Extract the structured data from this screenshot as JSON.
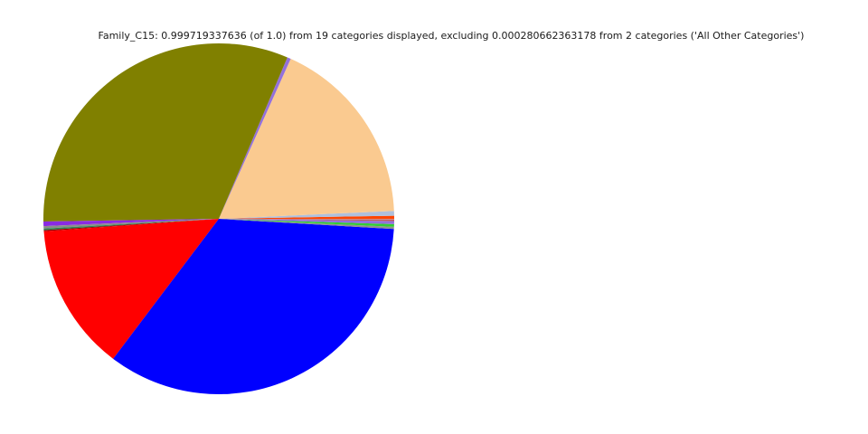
{
  "chart_data": {
    "type": "pie",
    "title": "Family_C15: 0.999719337636 (of 1.0) from 19 categories displayed, excluding 0.000280662363178 from 2 categories ('All Other Categories')",
    "displayed_fraction": 0.999719337636,
    "displayed_fraction_of": 1.0,
    "displayed_category_count": 19,
    "excluded_fraction": 0.000280662363178,
    "excluded_category_count": 2,
    "excluded_group_label": "All Other Categories",
    "start_angle_deg": 0,
    "direction": "counterclockwise",
    "labels_shown": false,
    "legend": "none",
    "background": "#ffffff",
    "slices": [
      {
        "color": "#FF4500",
        "value": 0.0028
      },
      {
        "color": "#AFC0DC",
        "value": 0.0044
      },
      {
        "color": "#FACA90",
        "value": 0.1755
      },
      {
        "color": "#9370DB",
        "value": 0.0033
      },
      {
        "color": "#808000",
        "value": 0.3163
      },
      {
        "color": "#8A2BE2",
        "value": 0.0042
      },
      {
        "color": "#8C8C8C",
        "value": 0.0022
      },
      {
        "color": "#2E8B57",
        "value": 0.0014
      },
      {
        "color": "#8B0000",
        "value": 0.0011
      },
      {
        "color": "#FF0000",
        "value": 0.1357
      },
      {
        "color": "#0000FF",
        "value": 0.3436
      },
      {
        "color": "#909090",
        "value": 0.0019
      },
      {
        "color": "#32CD32",
        "value": 0.0025
      },
      {
        "color": "#9370DB",
        "value": 0.0028
      },
      {
        "color": "#C25A5A",
        "value": 0.0017
      },
      {
        "color": "#CCCCCC",
        "value": 8e-05
      },
      {
        "color": "#CCCCCC",
        "value": 8e-05
      },
      {
        "color": "#CCCCCC",
        "value": 8e-05
      },
      {
        "color": "#CCCCCC",
        "value": 7.9337636e-05
      }
    ]
  }
}
